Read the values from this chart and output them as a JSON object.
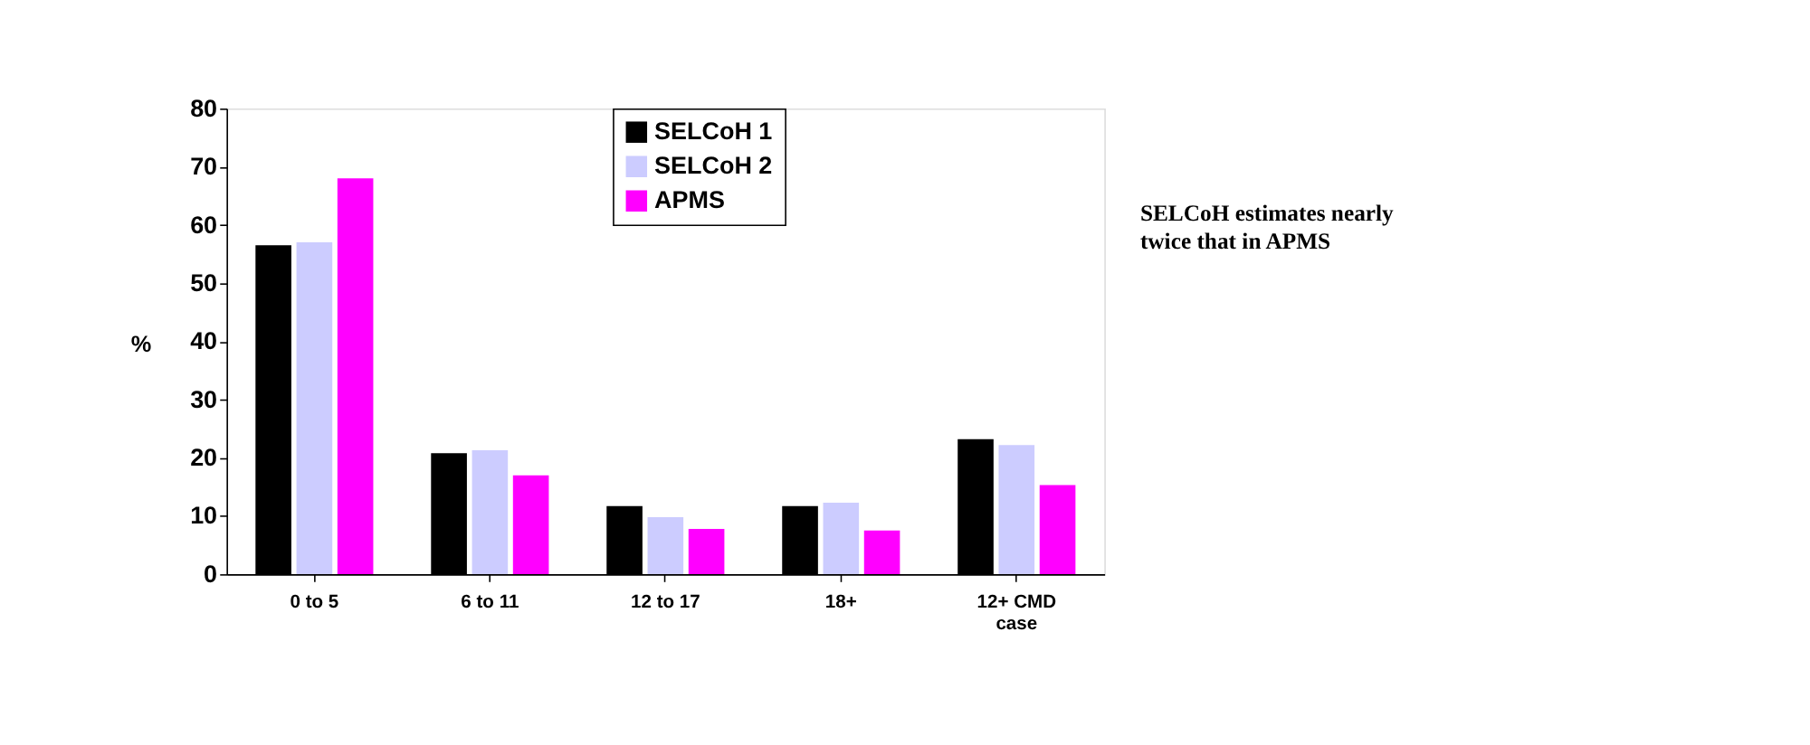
{
  "chart_data": {
    "type": "bar",
    "ylabel": "%",
    "categories": [
      "0 to 5",
      "6 to 11",
      "12 to 17",
      "18+",
      "12+ CMD case"
    ],
    "series": [
      {
        "name": "SELCoH 1",
        "color": "#000000",
        "values": [
          56.5,
          20.8,
          11.7,
          11.7,
          23.2
        ]
      },
      {
        "name": "SELCoH 2",
        "color": "#ccccff",
        "values": [
          57,
          21.3,
          9.8,
          12.3,
          22.2
        ]
      },
      {
        "name": "APMS",
        "color": "#ff00ff",
        "values": [
          68,
          17,
          7.8,
          7.5,
          15.3
        ]
      }
    ],
    "ylim": [
      0,
      80
    ],
    "yticks": [
      0,
      10,
      20,
      30,
      40,
      50,
      60,
      70,
      80
    ],
    "grid": false,
    "legend": "top",
    "annotations": [
      "SELCoH estimates nearly twice that in APMS"
    ]
  }
}
